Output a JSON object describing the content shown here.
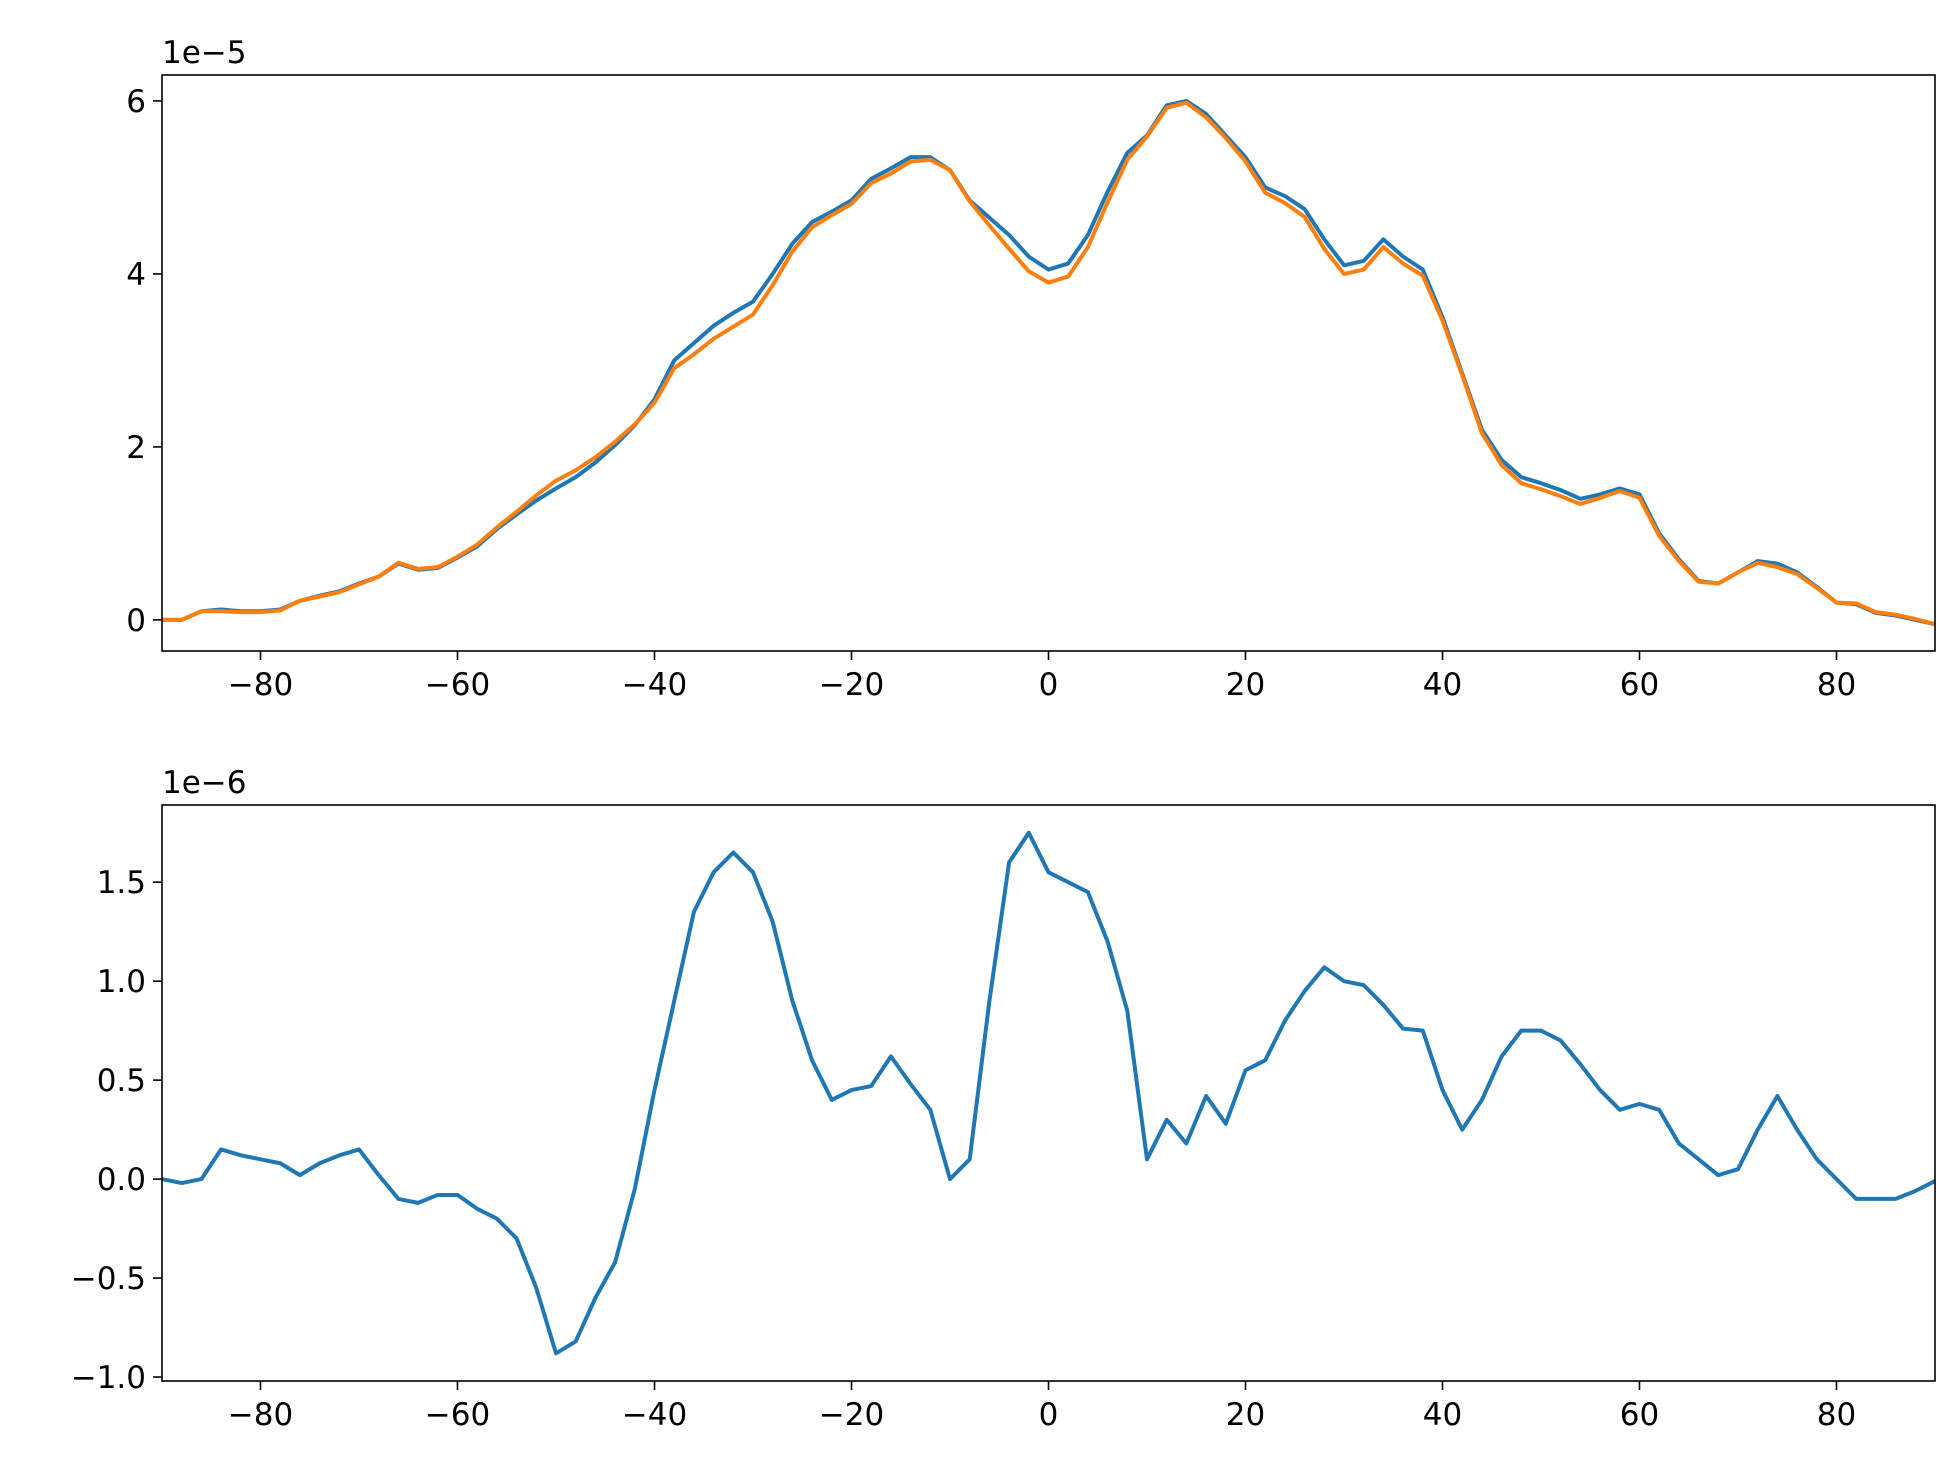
{
  "chart_data": [
    {
      "type": "line",
      "offset_text": "1e−5",
      "x": [
        -90,
        -88,
        -86,
        -84,
        -82,
        -80,
        -78,
        -76,
        -74,
        -72,
        -70,
        -68,
        -66,
        -64,
        -62,
        -60,
        -58,
        -56,
        -54,
        -52,
        -50,
        -48,
        -46,
        -44,
        -42,
        -40,
        -38,
        -36,
        -34,
        -32,
        -30,
        -28,
        -26,
        -24,
        -22,
        -20,
        -18,
        -16,
        -14,
        -12,
        -10,
        -8,
        -6,
        -4,
        -2,
        0,
        2,
        4,
        6,
        8,
        10,
        12,
        14,
        16,
        18,
        20,
        22,
        24,
        26,
        28,
        30,
        32,
        34,
        36,
        38,
        40,
        42,
        44,
        46,
        48,
        50,
        52,
        54,
        56,
        58,
        60,
        62,
        64,
        66,
        68,
        70,
        72,
        74,
        76,
        78,
        80,
        82,
        84,
        86,
        88,
        90
      ],
      "series": [
        {
          "color": "#1f77b4",
          "values": [
            0,
            0,
            0.1,
            0.12,
            0.1,
            0.1,
            0.12,
            0.22,
            0.28,
            0.33,
            0.42,
            0.5,
            0.65,
            0.58,
            0.6,
            0.72,
            0.85,
            1.05,
            1.22,
            1.38,
            1.52,
            1.65,
            1.82,
            2.02,
            2.25,
            2.55,
            3.0,
            3.2,
            3.4,
            3.55,
            3.68,
            4.0,
            4.35,
            4.6,
            4.72,
            4.85,
            5.1,
            5.22,
            5.35,
            5.35,
            5.2,
            4.85,
            4.65,
            4.45,
            4.2,
            4.05,
            4.12,
            4.45,
            4.95,
            5.4,
            5.6,
            5.95,
            6.0,
            5.85,
            5.6,
            5.35,
            5.0,
            4.9,
            4.75,
            4.4,
            4.1,
            4.15,
            4.4,
            4.2,
            4.05,
            3.5,
            2.85,
            2.2,
            1.85,
            1.65,
            1.58,
            1.5,
            1.4,
            1.45,
            1.52,
            1.45,
            1.0,
            0.7,
            0.45,
            0.42,
            0.55,
            0.68,
            0.65,
            0.55,
            0.38,
            0.2,
            0.18,
            0.08,
            0.05,
            0,
            -0.05
          ]
        },
        {
          "color": "#ff7f0e",
          "values": [
            0,
            0,
            0.1,
            0.1,
            0.09,
            0.09,
            0.11,
            0.22,
            0.27,
            0.32,
            0.41,
            0.5,
            0.66,
            0.59,
            0.61,
            0.73,
            0.87,
            1.07,
            1.25,
            1.44,
            1.61,
            1.73,
            1.88,
            2.06,
            2.26,
            2.51,
            2.91,
            3.07,
            3.25,
            3.39,
            3.53,
            3.87,
            4.26,
            4.54,
            4.68,
            4.81,
            5.05,
            5.16,
            5.3,
            5.32,
            5.2,
            4.84,
            4.56,
            4.29,
            4.03,
            3.9,
            3.97,
            4.31,
            4.83,
            5.32,
            5.59,
            5.92,
            5.98,
            5.81,
            5.57,
            5.3,
            4.94,
            4.82,
            4.66,
            4.29,
            4.0,
            4.05,
            4.31,
            4.12,
            3.98,
            3.46,
            2.83,
            2.16,
            1.79,
            1.58,
            1.51,
            1.43,
            1.34,
            1.41,
            1.49,
            1.41,
            0.97,
            0.68,
            0.44,
            0.42,
            0.55,
            0.66,
            0.61,
            0.53,
            0.37,
            0.2,
            0.19,
            0.09,
            0.06,
            0.01,
            -0.05
          ]
        }
      ],
      "xlim": [
        -90,
        90
      ],
      "xticks": [
        {
          "value": -80,
          "label": "−80"
        },
        {
          "value": -60,
          "label": "−60"
        },
        {
          "value": -40,
          "label": "−40"
        },
        {
          "value": -20,
          "label": "−20"
        },
        0,
        20,
        40,
        60,
        80
      ],
      "ylim": [
        -0.36,
        6.3
      ],
      "yticks": [
        0,
        2,
        4,
        6
      ]
    },
    {
      "type": "line",
      "offset_text": "1e−6",
      "x": [
        -90,
        -88,
        -86,
        -84,
        -82,
        -80,
        -78,
        -76,
        -74,
        -72,
        -70,
        -68,
        -66,
        -64,
        -62,
        -60,
        -58,
        -56,
        -54,
        -52,
        -50,
        -48,
        -46,
        -44,
        -42,
        -40,
        -38,
        -36,
        -34,
        -32,
        -30,
        -28,
        -26,
        -24,
        -22,
        -20,
        -18,
        -16,
        -14,
        -12,
        -10,
        -8,
        -6,
        -4,
        -2,
        0,
        2,
        4,
        6,
        8,
        10,
        12,
        14,
        16,
        18,
        20,
        22,
        24,
        26,
        28,
        30,
        32,
        34,
        36,
        38,
        40,
        42,
        44,
        46,
        48,
        50,
        52,
        54,
        56,
        58,
        60,
        62,
        64,
        66,
        68,
        70,
        72,
        74,
        76,
        78,
        80,
        82,
        84,
        86,
        88,
        90
      ],
      "series": [
        {
          "color": "#1f77b4",
          "values": [
            0,
            -0.02,
            0,
            0.15,
            0.12,
            0.1,
            0.08,
            0.02,
            0.08,
            0.12,
            0.15,
            0.02,
            -0.1,
            -0.12,
            -0.08,
            -0.08,
            -0.15,
            -0.2,
            -0.3,
            -0.55,
            -0.88,
            -0.82,
            -0.6,
            -0.42,
            -0.05,
            0.45,
            0.9,
            1.35,
            1.55,
            1.65,
            1.55,
            1.3,
            0.9,
            0.6,
            0.4,
            0.45,
            0.47,
            0.62,
            0.48,
            0.35,
            0,
            0.1,
            0.9,
            1.6,
            1.75,
            1.55,
            1.5,
            1.45,
            1.2,
            0.85,
            0.1,
            0.3,
            0.18,
            0.42,
            0.28,
            0.55,
            0.6,
            0.8,
            0.95,
            1.07,
            1.0,
            0.98,
            0.88,
            0.76,
            0.75,
            0.45,
            0.25,
            0.4,
            0.62,
            0.75,
            0.75,
            0.7,
            0.58,
            0.45,
            0.35,
            0.38,
            0.35,
            0.18,
            0.1,
            0.02,
            0.05,
            0.25,
            0.42,
            0.25,
            0.1,
            0,
            -0.1,
            -0.1,
            -0.1,
            -0.06,
            -0.01
          ]
        }
      ],
      "xlim": [
        -90,
        90
      ],
      "xticks": [
        {
          "value": -80,
          "label": "−80"
        },
        {
          "value": -60,
          "label": "−60"
        },
        {
          "value": -40,
          "label": "−40"
        },
        {
          "value": -20,
          "label": "−20"
        },
        0,
        20,
        40,
        60,
        80
      ],
      "ylim": [
        -1.02,
        1.89
      ],
      "yticks": [
        {
          "value": -1,
          "label": "−1.0"
        },
        {
          "value": -0.5,
          "label": "−0.5"
        },
        {
          "value": 0,
          "label": "0.0"
        },
        0.5,
        {
          "value": 1,
          "label": "1.0"
        },
        1.5
      ]
    }
  ]
}
